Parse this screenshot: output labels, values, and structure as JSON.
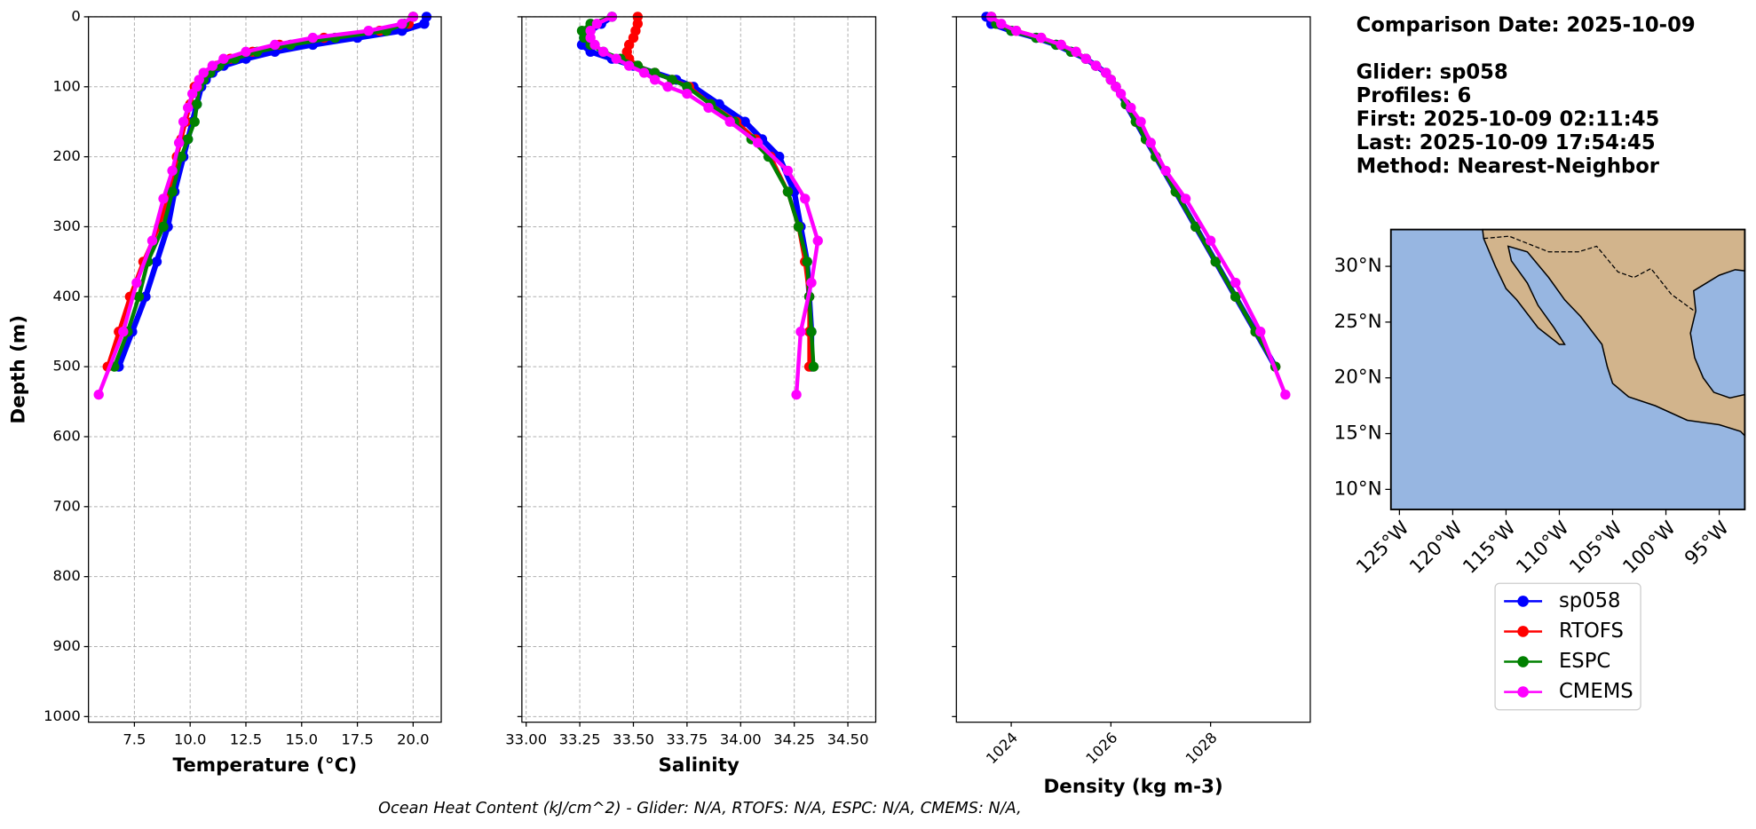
{
  "chart_data": [
    {
      "type": "line",
      "xlabel": "Temperature (°C)",
      "ylabel": "Depth (m)",
      "xlim": [
        5.44,
        21.26
      ],
      "xticks": [
        7.5,
        {
          "value": 10,
          "label": "10.0"
        },
        12.5,
        {
          "value": 15,
          "label": "15.0"
        },
        17.5,
        {
          "value": 20,
          "label": "20.0"
        }
      ],
      "ylim": [
        0,
        1008
      ],
      "y_inverted": true,
      "yticks": [
        0,
        100,
        200,
        300,
        400,
        500,
        600,
        700,
        800,
        900,
        1000
      ],
      "ytick_labels": true,
      "grid": true,
      "series": [
        {
          "name": "sp058",
          "color": "#0000ff",
          "x": [
            20.6,
            20.5,
            19.5,
            17.5,
            15.5,
            13.8,
            12.5,
            11.5,
            11.0,
            10.7,
            10.5,
            10.3,
            10.1,
            9.9,
            9.7,
            9.3,
            9.0,
            8.5,
            8.0,
            7.4,
            6.8
          ],
          "y": [
            0,
            10,
            20,
            30,
            40,
            50,
            60,
            70,
            80,
            90,
            100,
            125,
            150,
            175,
            200,
            250,
            300,
            350,
            400,
            450,
            500
          ]
        },
        {
          "name": "RTOFS",
          "color": "#ff0000",
          "x": [
            20.0,
            19.8,
            18.5,
            16.0,
            14.0,
            12.8,
            11.8,
            11.2,
            10.8,
            10.5,
            10.2,
            10.0,
            9.8,
            9.6,
            9.4,
            9.1,
            8.6,
            7.9,
            7.3,
            6.8,
            6.3
          ],
          "y": [
            0,
            10,
            20,
            30,
            40,
            50,
            60,
            70,
            80,
            90,
            100,
            125,
            150,
            175,
            200,
            250,
            300,
            350,
            400,
            450,
            500
          ]
        },
        {
          "name": "ESPC",
          "color": "#008000",
          "x": [
            20.0,
            19.6,
            18.8,
            16.5,
            14.5,
            13.0,
            12.0,
            11.3,
            10.9,
            10.6,
            10.4,
            10.3,
            10.2,
            9.9,
            9.6,
            9.2,
            8.8,
            8.1,
            7.7,
            7.2,
            6.6
          ],
          "y": [
            0,
            10,
            20,
            30,
            40,
            50,
            60,
            70,
            80,
            90,
            100,
            125,
            150,
            175,
            200,
            250,
            300,
            350,
            400,
            450,
            500
          ]
        },
        {
          "name": "CMEMS",
          "color": "#ff00ff",
          "x": [
            20.0,
            19.5,
            18.0,
            15.5,
            13.8,
            12.5,
            11.5,
            11.0,
            10.6,
            10.4,
            10.3,
            10.1,
            9.9,
            9.7,
            9.5,
            9.2,
            8.8,
            8.3,
            7.6,
            7.0,
            5.9
          ],
          "y": [
            0,
            10,
            20,
            30,
            40,
            50,
            60,
            70,
            80,
            90,
            100,
            110,
            130,
            150,
            180,
            220,
            260,
            320,
            380,
            450,
            540
          ]
        }
      ]
    },
    {
      "type": "line",
      "xlabel": "Salinity",
      "xlim": [
        32.98,
        34.63
      ],
      "xticks": [
        {
          "value": 33,
          "label": "33.00"
        },
        {
          "value": 33.25,
          "label": "33.25"
        },
        {
          "value": 33.5,
          "label": "33.50"
        },
        {
          "value": 33.75,
          "label": "33.75"
        },
        {
          "value": 34,
          "label": "34.00"
        },
        {
          "value": 34.25,
          "label": "34.25"
        },
        {
          "value": 34.5,
          "label": "34.50"
        }
      ],
      "ylim": [
        0,
        1008
      ],
      "y_inverted": true,
      "yticks": [
        0,
        100,
        200,
        300,
        400,
        500,
        600,
        700,
        800,
        900,
        1000
      ],
      "ytick_labels": false,
      "grid": true,
      "series": [
        {
          "name": "sp058",
          "color": "#0000ff",
          "x": [
            33.4,
            33.35,
            33.3,
            33.27,
            33.26,
            33.3,
            33.4,
            33.5,
            33.6,
            33.7,
            33.78,
            33.9,
            34.02,
            34.1,
            34.18,
            34.25,
            34.28,
            34.31,
            34.32,
            34.33,
            34.33
          ],
          "y": [
            0,
            10,
            20,
            30,
            40,
            50,
            60,
            70,
            80,
            90,
            100,
            125,
            150,
            175,
            200,
            250,
            300,
            350,
            400,
            450,
            500
          ]
        },
        {
          "name": "RTOFS",
          "color": "#ff0000",
          "x": [
            33.52,
            33.52,
            33.51,
            33.5,
            33.48,
            33.47,
            33.48,
            33.52,
            33.6,
            33.68,
            33.76,
            33.86,
            33.98,
            34.07,
            34.14,
            34.22,
            34.27,
            34.3,
            34.32,
            34.32,
            34.32
          ],
          "y": [
            0,
            10,
            20,
            30,
            40,
            50,
            60,
            70,
            80,
            90,
            100,
            125,
            150,
            175,
            200,
            250,
            300,
            350,
            400,
            450,
            500
          ]
        },
        {
          "name": "ESPC",
          "color": "#008000",
          "x": [
            33.4,
            33.3,
            33.26,
            33.27,
            33.3,
            33.36,
            33.44,
            33.52,
            33.6,
            33.68,
            33.75,
            33.86,
            33.97,
            34.05,
            34.13,
            34.22,
            34.27,
            34.31,
            34.32,
            34.33,
            34.34
          ],
          "y": [
            0,
            10,
            20,
            30,
            40,
            50,
            60,
            70,
            80,
            90,
            100,
            125,
            150,
            175,
            200,
            250,
            300,
            350,
            400,
            450,
            500
          ]
        },
        {
          "name": "CMEMS",
          "color": "#ff00ff",
          "x": [
            33.4,
            33.33,
            33.3,
            33.3,
            33.32,
            33.36,
            33.42,
            33.48,
            33.55,
            33.6,
            33.66,
            33.75,
            33.85,
            33.95,
            34.08,
            34.22,
            34.3,
            34.36,
            34.33,
            34.28,
            34.26
          ],
          "y": [
            0,
            10,
            20,
            30,
            40,
            50,
            60,
            70,
            80,
            90,
            100,
            110,
            130,
            150,
            180,
            220,
            260,
            320,
            380,
            450,
            540
          ]
        }
      ]
    },
    {
      "type": "line",
      "xlabel": "Density (kg m-3)",
      "xtick_rotate": true,
      "xlim": [
        1022.9,
        1030.0
      ],
      "xticks": [
        1024,
        1026,
        1028
      ],
      "ylim": [
        0,
        1008
      ],
      "y_inverted": true,
      "yticks": [
        0,
        100,
        200,
        300,
        400,
        500,
        600,
        700,
        800,
        900,
        1000
      ],
      "ytick_labels": false,
      "grid": false,
      "series": [
        {
          "name": "sp058",
          "color": "#0000ff",
          "x": [
            1023.5,
            1023.6,
            1024.0,
            1024.5,
            1024.9,
            1025.2,
            1025.5,
            1025.7,
            1025.9,
            1026.0,
            1026.1,
            1026.3,
            1026.5,
            1026.7,
            1026.9,
            1027.3,
            1027.7,
            1028.1,
            1028.5,
            1028.9,
            1029.3
          ],
          "y": [
            0,
            10,
            20,
            30,
            40,
            50,
            60,
            70,
            80,
            90,
            100,
            125,
            150,
            175,
            200,
            250,
            300,
            350,
            400,
            450,
            500
          ]
        },
        {
          "name": "RTOFS",
          "color": "#ff0000",
          "x": [
            1023.6,
            1023.7,
            1024.1,
            1024.6,
            1025.0,
            1025.3,
            1025.5,
            1025.7,
            1025.9,
            1026.0,
            1026.1,
            1026.3,
            1026.5,
            1026.7,
            1026.9,
            1027.3,
            1027.7,
            1028.1,
            1028.5,
            1028.9,
            1029.3
          ],
          "y": [
            0,
            10,
            20,
            30,
            40,
            50,
            60,
            70,
            80,
            90,
            100,
            125,
            150,
            175,
            200,
            250,
            300,
            350,
            400,
            450,
            500
          ]
        },
        {
          "name": "ESPC",
          "color": "#008000",
          "x": [
            1023.6,
            1023.7,
            1024.0,
            1024.5,
            1024.9,
            1025.2,
            1025.5,
            1025.7,
            1025.9,
            1026.0,
            1026.1,
            1026.3,
            1026.5,
            1026.7,
            1026.9,
            1027.3,
            1027.7,
            1028.1,
            1028.5,
            1028.9,
            1029.3
          ],
          "y": [
            0,
            10,
            20,
            30,
            40,
            50,
            60,
            70,
            80,
            90,
            100,
            125,
            150,
            175,
            200,
            250,
            300,
            350,
            400,
            450,
            500
          ]
        },
        {
          "name": "CMEMS",
          "color": "#ff00ff",
          "x": [
            1023.6,
            1023.8,
            1024.1,
            1024.6,
            1025.0,
            1025.3,
            1025.5,
            1025.7,
            1025.9,
            1026.0,
            1026.1,
            1026.2,
            1026.4,
            1026.6,
            1026.8,
            1027.1,
            1027.5,
            1028.0,
            1028.5,
            1029.0,
            1029.5
          ],
          "y": [
            0,
            10,
            20,
            30,
            40,
            50,
            60,
            70,
            80,
            90,
            100,
            110,
            130,
            150,
            180,
            220,
            260,
            320,
            380,
            450,
            540
          ]
        }
      ]
    }
  ],
  "info": [
    "Comparison Date: 2025-10-09",
    "Glider: sp058",
    "Profiles: 6",
    "First: 2025-10-09 02:11:45",
    "Last: 2025-10-09 17:54:45",
    "Method: Nearest-Neighbor"
  ],
  "map": {
    "lonlim": [
      -125.8,
      -92.6
    ],
    "latlim": [
      8.2,
      33.3
    ],
    "lonticks": [
      {
        "value": -125,
        "label": "125°W"
      },
      {
        "value": -120,
        "label": "120°W"
      },
      {
        "value": -115,
        "label": "115°W"
      },
      {
        "value": -110,
        "label": "110°W"
      },
      {
        "value": -105,
        "label": "105°W"
      },
      {
        "value": -100,
        "label": "100°W"
      },
      {
        "value": -95,
        "label": "95°W"
      }
    ],
    "latticks": [
      {
        "value": 30,
        "label": "30°N"
      },
      {
        "value": 25,
        "label": "25°N"
      },
      {
        "value": 20,
        "label": "20°N"
      },
      {
        "value": 15,
        "label": "15°N"
      },
      {
        "value": 10,
        "label": "10°N"
      }
    ]
  },
  "footer": "Ocean Heat Content (kJ/cm^2) - Glider: N/A,  RTOFS: N/A,  ESPC: N/A,  CMEMS: N/A,"
}
